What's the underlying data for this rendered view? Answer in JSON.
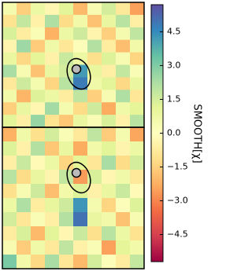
{
  "chart_data": {
    "type": "heatmap",
    "colormap": "Spectral",
    "colorbar_label": "SMOOTH[χ]",
    "clim": [
      -5.7,
      5.7
    ],
    "cticks": [
      4.5,
      {
        "value": 3.0,
        "label": "3.0"
      },
      1.5,
      {
        "value": 0.0,
        "label": "0.0"
      },
      {
        "value": -1.5,
        "label": "−1.5"
      },
      {
        "value": -3.0,
        "label": "−3.0"
      },
      {
        "value": -4.5,
        "label": "−4.5"
      }
    ],
    "panels": [
      {
        "values": [
          [
            0.5,
            -1.5,
            0.8,
            -0.3,
            1.2,
            -2.0,
            0.4,
            1.5,
            -0.8,
            -2.5
          ],
          [
            -1.0,
            1.8,
            -0.5,
            2.2,
            -1.2,
            0.6,
            -1.8,
            0.9,
            2.0,
            -0.6
          ],
          [
            1.4,
            -0.7,
            0.3,
            -2.2,
            0.8,
            1.6,
            -0.4,
            -1.5,
            0.5,
            1.9
          ],
          [
            -0.4,
            2.5,
            -1.6,
            0.7,
            -0.9,
            0.2,
            2.1,
            -0.7,
            -1.9,
            0.6
          ],
          [
            0.9,
            -1.3,
            1.1,
            -0.5,
            1.7,
            0.8,
            -1.1,
            1.3,
            0.4,
            -1.4
          ],
          [
            2.3,
            0.4,
            -1.8,
            0.9,
            1.5,
            4.2,
            1.0,
            -0.6,
            1.8,
            0.3
          ],
          [
            -0.8,
            1.6,
            0.5,
            -1.4,
            2.0,
            4.8,
            0.7,
            1.2,
            -1.3,
            0.9
          ],
          [
            0.6,
            -2.1,
            1.3,
            0.8,
            -0.7,
            1.9,
            -1.5,
            0.4,
            2.2,
            -0.9
          ],
          [
            -1.5,
            0.9,
            -0.3,
            2.4,
            0.5,
            -1.2,
            1.6,
            -2.3,
            0.7,
            1.1
          ],
          [
            1.2,
            -0.6,
            2.6,
            -1.0,
            -1.7,
            0.9,
            0.3,
            1.4,
            -0.5,
            2.0
          ]
        ]
      },
      {
        "values": [
          [
            -2.2,
            0.7,
            -1.1,
            1.5,
            0.3,
            -0.8,
            1.9,
            -1.6,
            0.5,
            -2.4
          ],
          [
            1.3,
            -0.5,
            2.1,
            -1.7,
            0.9,
            -2.3,
            0.6,
            1.2,
            -0.4,
            0.8
          ],
          [
            -0.6,
            1.7,
            -0.2,
            0.8,
            -1.4,
            1.1,
            -0.9,
            2.3,
            -1.2,
            1.5
          ],
          [
            2.0,
            -1.2,
            0.9,
            -0.4,
            1.8,
            -2.6,
            1.4,
            -0.3,
            0.7,
            -0.8
          ],
          [
            -1.1,
            0.4,
            1.6,
            -1.9,
            0.6,
            1.3,
            -0.5,
            0.9,
            1.7,
            -0.2
          ],
          [
            0.8,
            2.2,
            -0.7,
            1.0,
            1.6,
            4.3,
            0.5,
            -1.4,
            0.2,
            1.3
          ],
          [
            1.5,
            -0.9,
            0.3,
            -0.6,
            2.1,
            5.0,
            0.9,
            0.6,
            -1.8,
            0.4
          ],
          [
            -0.7,
            1.4,
            -2.0,
            1.2,
            -0.3,
            1.7,
            -1.1,
            2.0,
            0.8,
            -1.0
          ],
          [
            0.4,
            -1.6,
            0.7,
            -0.8,
            1.9,
            -0.5,
            0.3,
            -2.5,
            1.1,
            0.6
          ],
          [
            3.1,
            0.6,
            -1.3,
            2.3,
            -0.9,
            -2.0,
            1.5,
            0.2,
            -0.7,
            1.8
          ]
        ]
      }
    ]
  }
}
